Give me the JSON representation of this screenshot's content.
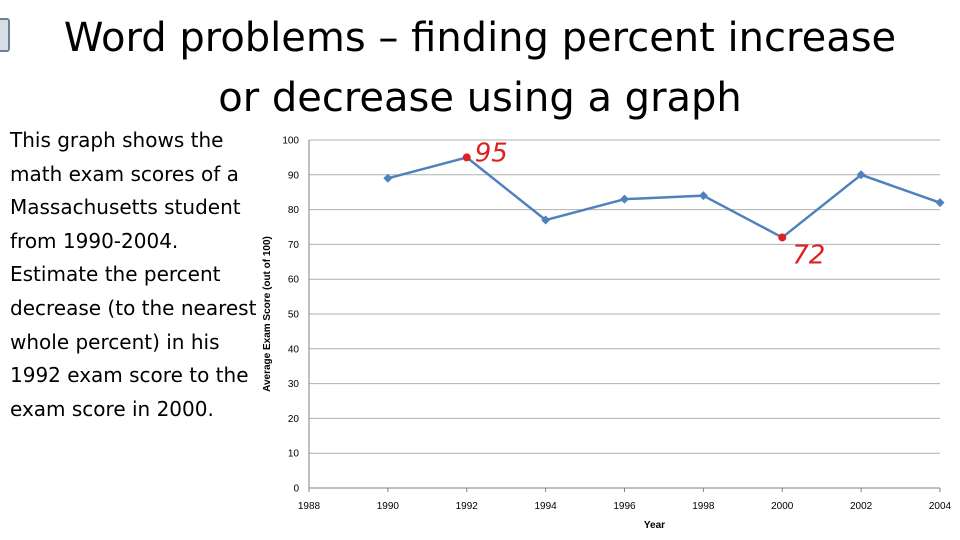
{
  "slide": {
    "title_line1": "Word problems – finding percent increase",
    "title_line2": "or decrease using a graph",
    "prompt_text": "This graph shows the math exam scores of a Massachusetts student from 1990-2004. Estimate the percent decrease (to the nearest whole percent) in his 1992 exam score to the exam score in 2000."
  },
  "colors": {
    "series_line": "#4f81bd",
    "highlight": "#e02020",
    "gridline": "#b0b0b0"
  },
  "chart_data": {
    "type": "line",
    "title": "",
    "xlabel": "Year",
    "ylabel": "Average Exam Score (out of 100)",
    "xlim": [
      1988,
      2004
    ],
    "ylim": [
      0,
      100
    ],
    "x_ticks": [
      1988,
      1990,
      1992,
      1994,
      1996,
      1998,
      2000,
      2002,
      2004
    ],
    "y_ticks": [
      0,
      10,
      20,
      30,
      40,
      50,
      60,
      70,
      80,
      90,
      100
    ],
    "grid": "horizontal",
    "series": [
      {
        "x": [
          1990,
          1992,
          1994,
          1996,
          1998,
          2000,
          2002,
          2004
        ],
        "y": [
          89,
          95,
          77,
          83,
          84,
          72,
          90,
          82
        ]
      }
    ],
    "annotations": [
      {
        "x": 1992,
        "y": 95,
        "text": "95"
      },
      {
        "x": 2000,
        "y": 72,
        "text": "72"
      }
    ]
  }
}
